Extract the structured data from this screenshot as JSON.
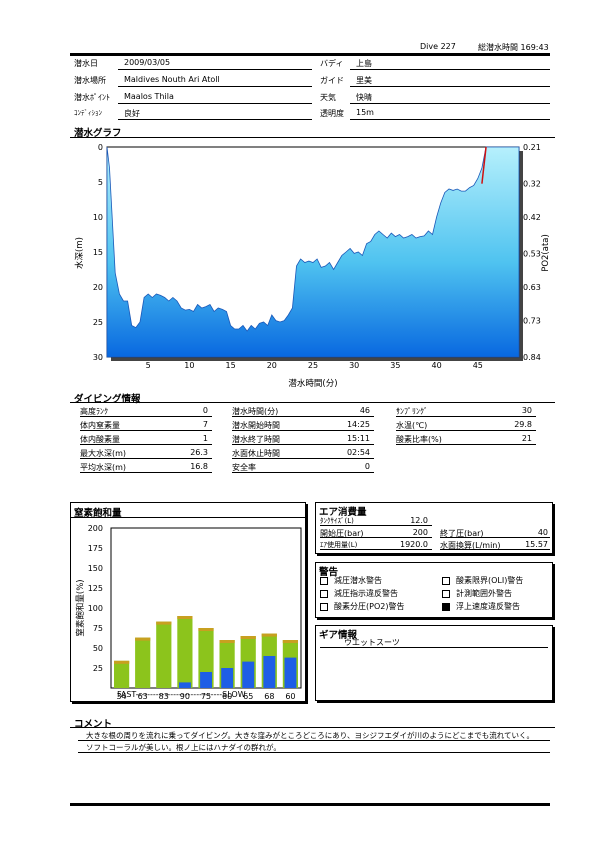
{
  "header": {
    "dive_label": "Dive 227",
    "total_label": "総潜水時間 169:43"
  },
  "info": {
    "left": [
      {
        "label": "潜水日",
        "value": "2009/03/05"
      },
      {
        "label": "潜水場所",
        "value": "Maldives Nouth Ari  Atoll"
      },
      {
        "label": "潜水ﾎﾟｲﾝﾄ",
        "value": "Maalos  Thila"
      },
      {
        "label": "ｺﾝﾃﾞｨｼｮﾝ",
        "value": "良好"
      }
    ],
    "right": [
      {
        "label": "バディ",
        "value": "上島"
      },
      {
        "label": "ガイド",
        "value": "里美"
      },
      {
        "label": "天気",
        "value": "快晴"
      },
      {
        "label": "透明度",
        "value": "15m"
      }
    ]
  },
  "dive_graph": {
    "section_title": "潜水グラフ",
    "y_left_label": "水深(m)",
    "y_right_label": "PO2(ata)",
    "x_label": "潜水時間(分)",
    "y_left_ticks": [
      "0",
      "5",
      "10",
      "15",
      "20",
      "25",
      "30"
    ],
    "y_right_ticks": [
      "0.21",
      "0.32",
      "0.42",
      "0.53",
      "0.63",
      "0.73",
      "0.84"
    ],
    "x_ticks": [
      "5",
      "10",
      "15",
      "20",
      "25",
      "30",
      "35",
      "40",
      "45"
    ]
  },
  "chart_data": [
    {
      "type": "area",
      "xlabel": "潜水時間(分)",
      "ylabel": "水深(m)",
      "y2label": "PO2(ata)",
      "xlim": [
        0,
        50
      ],
      "ylim": [
        30,
        0
      ],
      "y2lim": [
        0.21,
        0.84
      ],
      "x": [
        0,
        0.3,
        1,
        1.5,
        2,
        2.5,
        3,
        3.5,
        4,
        4.5,
        5,
        5.5,
        6,
        6.5,
        7,
        7.5,
        8,
        8.5,
        9,
        9.5,
        10,
        10.5,
        11,
        11.5,
        12,
        12.5,
        13,
        13.5,
        14,
        14.5,
        15,
        15.5,
        16,
        16.5,
        17,
        17.5,
        18,
        18.5,
        19,
        19.5,
        20,
        20.5,
        21,
        21.5,
        22,
        22.5,
        23,
        23.5,
        24,
        24.5,
        25,
        25.5,
        26,
        26.5,
        27,
        27.5,
        28,
        28.5,
        29,
        29.5,
        30,
        30.5,
        31,
        31.5,
        32,
        32.5,
        33,
        33.5,
        34,
        34.5,
        35,
        35.5,
        36,
        36.5,
        37,
        37.5,
        38,
        38.5,
        39,
        39.5,
        40,
        40.5,
        41,
        41.5,
        42,
        42.5,
        43,
        43.5,
        44,
        44.5,
        45,
        45.5,
        46
      ],
      "values": [
        0,
        3,
        18,
        21,
        22,
        22,
        25.5,
        25.8,
        25,
        21.5,
        21,
        21.5,
        21,
        21.2,
        21.5,
        22,
        21.5,
        22,
        23,
        23.3,
        23.2,
        23.5,
        22.5,
        23,
        22.8,
        22.5,
        23.5,
        23,
        23.2,
        23.5,
        25.5,
        26,
        26,
        25.5,
        26.3,
        25.5,
        26,
        25.2,
        25,
        25.5,
        24,
        24.8,
        25,
        24.8,
        24,
        23,
        17,
        16,
        16.5,
        16.3,
        16.5,
        16,
        17.2,
        17,
        16.5,
        17.5,
        16.5,
        15.5,
        15,
        14.5,
        15.2,
        15,
        15.5,
        13.8,
        13.5,
        12.5,
        12,
        12.5,
        13,
        12.3,
        12.8,
        12.5,
        13,
        12.8,
        12.5,
        13,
        12.8,
        12.7,
        12,
        12.5,
        10,
        8,
        6.5,
        6,
        6.2,
        6,
        6.3,
        6.3,
        5.8,
        5.5,
        4.5,
        3,
        0
      ],
      "po2_line": {
        "x": [
          45.5,
          46
        ],
        "values": [
          0.32,
          0.21
        ]
      }
    },
    {
      "type": "bar",
      "title": "窒素飽和量",
      "ylabel": "窒素飽和量(%)",
      "ylim": [
        0,
        200
      ],
      "categories": [
        "34",
        "63",
        "83",
        "90",
        "75",
        "60",
        "65",
        "68",
        "60"
      ],
      "series": [
        {
          "values": [
            34,
            63,
            83,
            90,
            75,
            60,
            65,
            68,
            60
          ],
          "color": "#8cc41c"
        },
        {
          "values": [
            0,
            0,
            0,
            7,
            20,
            25,
            33,
            40,
            38
          ],
          "color": "#1e5ee6"
        }
      ],
      "yticks": [
        "200",
        "175",
        "150",
        "125",
        "100",
        "75",
        "50",
        "25"
      ],
      "x_caption": "FAST------------------------------SLOW"
    }
  ],
  "diving_info": {
    "section_title": "ダイビング情報",
    "col1": [
      {
        "label": "高度ﾗﾝｸ",
        "value": "0"
      },
      {
        "label": "体内窒素量",
        "value": "7"
      },
      {
        "label": "体内酸素量",
        "value": "1"
      },
      {
        "label": "最大水深(m)",
        "value": "26.3"
      },
      {
        "label": "平均水深(m)",
        "value": "16.8"
      }
    ],
    "col2": [
      {
        "label": "潜水時間(分)",
        "value": "46"
      },
      {
        "label": "潜水開始時間",
        "value": "14:25"
      },
      {
        "label": "潜水終了時間",
        "value": "15:11"
      },
      {
        "label": "水面休止時間",
        "value": "02:54"
      },
      {
        "label": "安全率",
        "value": "0"
      }
    ],
    "col3": [
      {
        "label": "ｻﾝﾌﾟﾘﾝｸﾞ",
        "value": "30"
      },
      {
        "label": "水温(℃)",
        "value": "29.8"
      },
      {
        "label": "酸素比率(%)",
        "value": "21"
      }
    ]
  },
  "air": {
    "section_title": "エア消費量",
    "tank_label": "ﾀﾝｸｻｲｽﾞ(L)",
    "tank_value": "12.0",
    "start_label": "開始圧(bar)",
    "start_value": "200",
    "end_label": "終了圧(bar)",
    "end_value": "40",
    "used_label": "ｴｱ使用量(L)",
    "used_value": "1920.0",
    "surface_label": "水面換算(L/min)",
    "surface_value": "15.57"
  },
  "warnings": {
    "section_title": "警告",
    "items": [
      {
        "label": "減圧潜水警告",
        "checked": false
      },
      {
        "label": "減圧指示違反警告",
        "checked": false
      },
      {
        "label": "酸素分圧(PO2)警告",
        "checked": false
      },
      {
        "label": "酸素限界(OLI)警告",
        "checked": false
      },
      {
        "label": "計測範囲外警告",
        "checked": false
      },
      {
        "label": "浮上速度違反警告",
        "checked": true
      }
    ]
  },
  "gear": {
    "section_title": "ギア情報",
    "value": "ウエットスーツ"
  },
  "comment": {
    "section_title": "コメント",
    "line1": "大きな根の周りを流れに乗ってダイビング。大きな窪みがところどころにあり、ヨシジフエダイが川のようにどこまでも流れていく。",
    "line2": "ソフトコーラルが美しい。根ノ上にはハナダイの群れが。"
  }
}
